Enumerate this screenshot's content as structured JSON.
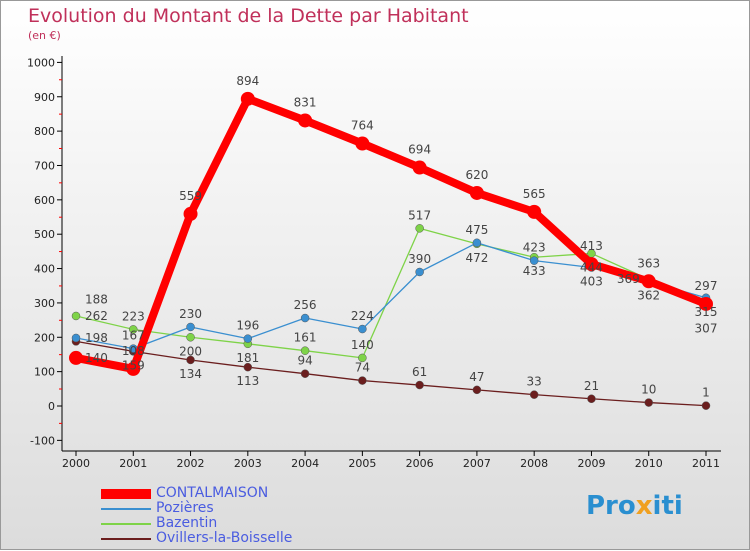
{
  "chart_data": {
    "type": "line",
    "title": "Evolution du Montant de la Dette par Habitant",
    "subtitle": "(en €)",
    "x": [
      "2000",
      "2001",
      "2002",
      "2003",
      "2004",
      "2005",
      "2006",
      "2007",
      "2008",
      "2009",
      "2010",
      "2011"
    ],
    "ylim": [
      -100,
      1000
    ],
    "yticks": [
      -100,
      0,
      100,
      200,
      300,
      400,
      500,
      600,
      700,
      800,
      900,
      1000
    ],
    "series": [
      {
        "name": "CONTALMAISON",
        "color": "#ff0000",
        "values": [
          140,
          108,
          559,
          894,
          831,
          764,
          694,
          620,
          565,
          413,
          363,
          297
        ]
      },
      {
        "name": "Pozières",
        "color": "#3a8fd0",
        "values": [
          198,
          167,
          230,
          196,
          256,
          224,
          390,
          475,
          423,
          403,
          362,
          315
        ]
      },
      {
        "name": "Bazentin",
        "color": "#7ed348",
        "values": [
          262,
          223,
          200,
          181,
          161,
          140,
          517,
          472,
          433,
          444,
          369,
          307
        ]
      },
      {
        "name": "Ovillers-la-Boisselle",
        "color": "#6b1e1e",
        "values": [
          188,
          159,
          134,
          113,
          94,
          74,
          61,
          47,
          33,
          21,
          10,
          1
        ]
      }
    ]
  },
  "logo": "Proxiti"
}
